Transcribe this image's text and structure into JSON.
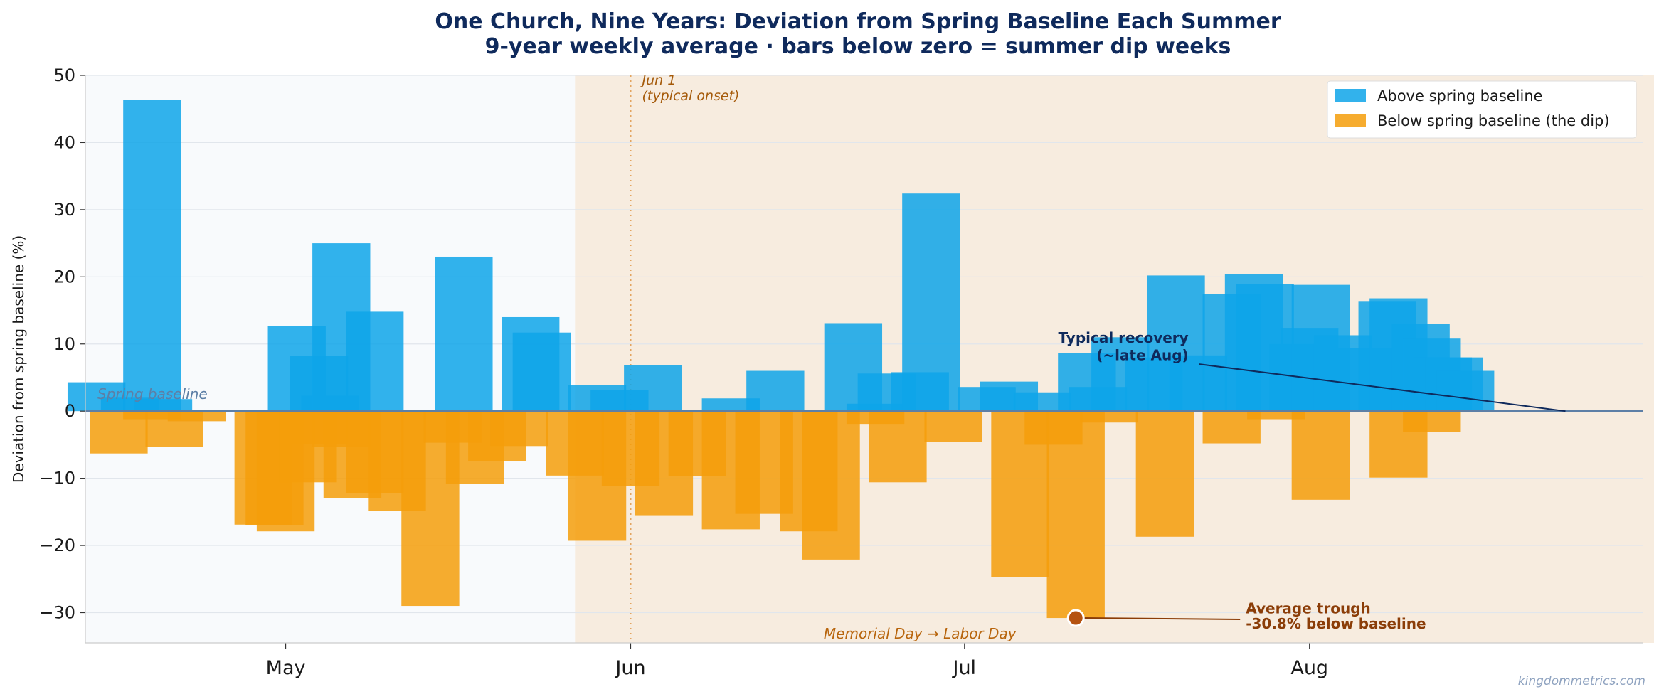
{
  "chart_data": {
    "type": "bar",
    "title": "One Church, Nine Years: Deviation from Spring Baseline Each Summer",
    "subtitle": "9-year weekly average · bars below zero = summer dip weeks",
    "xlabel": "",
    "ylabel": "Deviation from spring baseline (%)",
    "ylim": [
      -34.5,
      50
    ],
    "xlim": [
      "2024-04-13",
      "2024-08-31"
    ],
    "y_ticks": [
      {
        "value": 50,
        "label": "50"
      },
      {
        "value": 40,
        "label": "40"
      },
      {
        "value": 30,
        "label": "30"
      },
      {
        "value": 20,
        "label": "20"
      },
      {
        "value": 10,
        "label": "10"
      },
      {
        "value": 0,
        "label": "0"
      },
      {
        "value": -10,
        "label": "−10"
      },
      {
        "value": -20,
        "label": "−20"
      },
      {
        "value": -30,
        "label": "−30"
      }
    ],
    "x_ticks": [
      {
        "date": "2024-05-01",
        "label": "May"
      },
      {
        "date": "2024-06-01",
        "label": "Jun"
      },
      {
        "date": "2024-07-01",
        "label": "Jul"
      },
      {
        "date": "2024-08-01",
        "label": "Aug"
      }
    ],
    "grid": true,
    "legend_position": "top-right",
    "series": [
      {
        "name": "Above spring baseline",
        "color": "#0ea5e9",
        "points": [
          {
            "date": "2024-04-14",
            "value": 4.3
          },
          {
            "date": "2024-04-17",
            "value": 2.0
          },
          {
            "date": "2024-04-19",
            "value": 46.3
          },
          {
            "date": "2024-04-20",
            "value": 1.8
          },
          {
            "date": "2024-05-02",
            "value": 12.7
          },
          {
            "date": "2024-05-04",
            "value": 8.2
          },
          {
            "date": "2024-05-05",
            "value": 2.3
          },
          {
            "date": "2024-05-06",
            "value": 25.0
          },
          {
            "date": "2024-05-09",
            "value": 14.8
          },
          {
            "date": "2024-05-17",
            "value": 23.0
          },
          {
            "date": "2024-05-23",
            "value": 14.0
          },
          {
            "date": "2024-05-24",
            "value": 11.7
          },
          {
            "date": "2024-05-29",
            "value": 3.9
          },
          {
            "date": "2024-05-31",
            "value": 3.1
          },
          {
            "date": "2024-06-03",
            "value": 6.8
          },
          {
            "date": "2024-06-10",
            "value": 1.9
          },
          {
            "date": "2024-06-14",
            "value": 6.0
          },
          {
            "date": "2024-06-21",
            "value": 13.1
          },
          {
            "date": "2024-06-23",
            "value": 1.1
          },
          {
            "date": "2024-06-24",
            "value": 5.6
          },
          {
            "date": "2024-06-27",
            "value": 5.8
          },
          {
            "date": "2024-06-28",
            "value": 32.4
          },
          {
            "date": "2024-07-03",
            "value": 3.6
          },
          {
            "date": "2024-07-05",
            "value": 4.4
          },
          {
            "date": "2024-07-08",
            "value": 2.8
          },
          {
            "date": "2024-07-12",
            "value": 8.7
          },
          {
            "date": "2024-07-13",
            "value": 3.6
          },
          {
            "date": "2024-07-15",
            "value": 11.0
          },
          {
            "date": "2024-07-18",
            "value": 8.0
          },
          {
            "date": "2024-07-20",
            "value": 20.2
          },
          {
            "date": "2024-07-22",
            "value": 8.3
          },
          {
            "date": "2024-07-25",
            "value": 17.4
          },
          {
            "date": "2024-07-27",
            "value": 20.4
          },
          {
            "date": "2024-07-28",
            "value": 18.9
          },
          {
            "date": "2024-07-31",
            "value": 10.0
          },
          {
            "date": "2024-08-01",
            "value": 12.4
          },
          {
            "date": "2024-08-02",
            "value": 18.8
          },
          {
            "date": "2024-08-04",
            "value": 11.3
          },
          {
            "date": "2024-08-06",
            "value": 9.4
          },
          {
            "date": "2024-08-08",
            "value": 16.4
          },
          {
            "date": "2024-08-09",
            "value": 16.8
          },
          {
            "date": "2024-08-11",
            "value": 13.0
          },
          {
            "date": "2024-08-12",
            "value": 10.8
          },
          {
            "date": "2024-08-13",
            "value": 8.0
          },
          {
            "date": "2024-08-14",
            "value": 8.0
          },
          {
            "date": "2024-08-15",
            "value": 6.0
          }
        ]
      },
      {
        "name": "Below spring baseline (the dip)",
        "color": "#f59e0b",
        "points": [
          {
            "date": "2024-04-16",
            "value": -6.3
          },
          {
            "date": "2024-04-19",
            "value": -1.2
          },
          {
            "date": "2024-04-21",
            "value": -5.3
          },
          {
            "date": "2024-04-23",
            "value": -1.5
          },
          {
            "date": "2024-04-29",
            "value": -16.9
          },
          {
            "date": "2024-04-30",
            "value": -17.0
          },
          {
            "date": "2024-05-01",
            "value": -17.9
          },
          {
            "date": "2024-05-03",
            "value": -10.6
          },
          {
            "date": "2024-05-04",
            "value": -4.9
          },
          {
            "date": "2024-05-06",
            "value": -5.3
          },
          {
            "date": "2024-05-07",
            "value": -12.9
          },
          {
            "date": "2024-05-09",
            "value": -12.2
          },
          {
            "date": "2024-05-11",
            "value": -14.9
          },
          {
            "date": "2024-05-14",
            "value": -29.0
          },
          {
            "date": "2024-05-16",
            "value": -4.7
          },
          {
            "date": "2024-05-18",
            "value": -10.8
          },
          {
            "date": "2024-05-20",
            "value": -7.4
          },
          {
            "date": "2024-05-22",
            "value": -5.2
          },
          {
            "date": "2024-05-27",
            "value": -9.6
          },
          {
            "date": "2024-05-29",
            "value": -19.3
          },
          {
            "date": "2024-06-01",
            "value": -11.1
          },
          {
            "date": "2024-06-04",
            "value": -15.5
          },
          {
            "date": "2024-06-07",
            "value": -9.7
          },
          {
            "date": "2024-06-10",
            "value": -17.6
          },
          {
            "date": "2024-06-13",
            "value": -15.3
          },
          {
            "date": "2024-06-17",
            "value": -17.9
          },
          {
            "date": "2024-06-19",
            "value": -22.1
          },
          {
            "date": "2024-06-23",
            "value": -1.9
          },
          {
            "date": "2024-06-25",
            "value": -10.6
          },
          {
            "date": "2024-06-30",
            "value": -4.6
          },
          {
            "date": "2024-07-06",
            "value": -24.7
          },
          {
            "date": "2024-07-09",
            "value": -5.0
          },
          {
            "date": "2024-07-11",
            "value": -30.8
          },
          {
            "date": "2024-07-14",
            "value": -1.7
          },
          {
            "date": "2024-07-19",
            "value": -18.7
          },
          {
            "date": "2024-07-25",
            "value": -4.8
          },
          {
            "date": "2024-07-29",
            "value": -1.2
          },
          {
            "date": "2024-08-02",
            "value": -13.2
          },
          {
            "date": "2024-08-09",
            "value": -9.9
          },
          {
            "date": "2024-08-12",
            "value": -3.1
          }
        ]
      }
    ],
    "shaded_region": {
      "start": "2024-05-27",
      "end": "2024-09-02",
      "label": "Memorial Day → Labor Day"
    },
    "annotations": {
      "onset_line": {
        "date": "2024-06-01",
        "label_line1": "Jun 1",
        "label_line2": "(typical onset)"
      },
      "baseline_label": "Spring baseline",
      "recovery": {
        "line1": "Typical recovery",
        "line2": "(~late Aug)",
        "point_date": "2024-08-24",
        "point_value": 0
      },
      "trough": {
        "line1": "Average trough",
        "line2": "-30.8% below baseline",
        "date": "2024-07-11",
        "value": -30.8
      }
    },
    "watermark": "kingdommetrics.com",
    "colors": {
      "above": "#0ea5e9",
      "below": "#f59e0b",
      "title": "#0f2a5c",
      "annotation_brown": "#8b3d08",
      "onset_orange": "#cc6a00",
      "baseline_line": "#5d7fa6",
      "shade": "#f7ecdf",
      "plot_bg": "#f8fafc"
    }
  }
}
